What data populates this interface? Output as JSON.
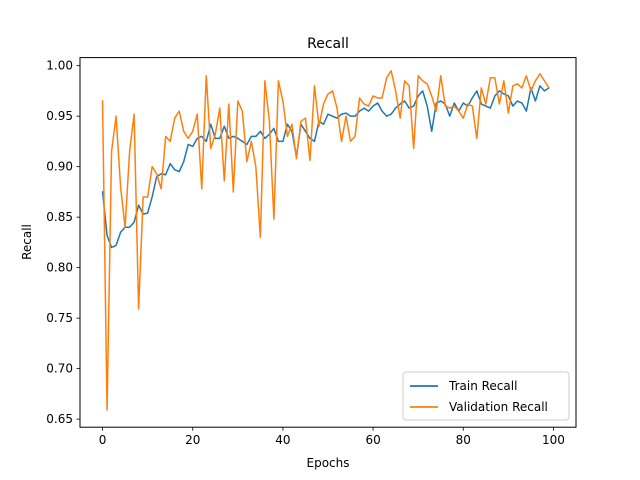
{
  "chart_data": {
    "type": "line",
    "title": "Recall",
    "xlabel": "Epochs",
    "ylabel": "Recall",
    "xlim": [
      -5,
      105
    ],
    "ylim": [
      0.642,
      1.008
    ],
    "xticks": [
      0,
      20,
      40,
      60,
      80,
      100
    ],
    "xtick_labels": [
      "0",
      "20",
      "40",
      "60",
      "80",
      "100"
    ],
    "yticks": [
      0.65,
      0.7,
      0.75,
      0.8,
      0.85,
      0.9,
      0.95,
      1.0
    ],
    "ytick_labels": [
      "0.65",
      "0.70",
      "0.75",
      "0.80",
      "0.85",
      "0.90",
      "0.95",
      "1.00"
    ],
    "grid": false,
    "legend_position": "lower-right",
    "series": [
      {
        "name": "Train Recall",
        "color": "#1f77b4",
        "values": [
          0.875,
          0.832,
          0.82,
          0.822,
          0.835,
          0.84,
          0.84,
          0.845,
          0.862,
          0.853,
          0.854,
          0.87,
          0.89,
          0.893,
          0.892,
          0.903,
          0.897,
          0.895,
          0.905,
          0.922,
          0.92,
          0.928,
          0.93,
          0.925,
          0.942,
          0.928,
          0.928,
          0.94,
          0.928,
          0.93,
          0.928,
          0.925,
          0.922,
          0.93,
          0.93,
          0.935,
          0.928,
          0.932,
          0.938,
          0.925,
          0.925,
          0.942,
          0.935,
          0.91,
          0.942,
          0.935,
          0.928,
          0.925,
          0.945,
          0.942,
          0.952,
          0.95,
          0.948,
          0.952,
          0.953,
          0.95,
          0.95,
          0.955,
          0.958,
          0.955,
          0.96,
          0.963,
          0.955,
          0.95,
          0.952,
          0.958,
          0.962,
          0.965,
          0.958,
          0.96,
          0.97,
          0.975,
          0.96,
          0.935,
          0.963,
          0.965,
          0.962,
          0.95,
          0.963,
          0.955,
          0.963,
          0.96,
          0.968,
          0.975,
          0.962,
          0.96,
          0.958,
          0.97,
          0.975,
          0.972,
          0.97,
          0.96,
          0.965,
          0.963,
          0.955,
          0.978,
          0.965,
          0.98,
          0.975,
          0.978
        ]
      },
      {
        "name": "Validation Recall",
        "color": "#ff7f0e",
        "values": [
          0.965,
          0.659,
          0.915,
          0.95,
          0.88,
          0.84,
          0.915,
          0.952,
          0.759,
          0.87,
          0.87,
          0.9,
          0.893,
          0.878,
          0.93,
          0.925,
          0.948,
          0.955,
          0.935,
          0.928,
          0.935,
          0.952,
          0.878,
          0.99,
          0.918,
          0.932,
          0.958,
          0.886,
          0.962,
          0.875,
          0.965,
          0.955,
          0.905,
          0.925,
          0.9,
          0.83,
          0.985,
          0.945,
          0.848,
          0.985,
          0.965,
          0.93,
          0.942,
          0.908,
          0.945,
          0.948,
          0.906,
          0.98,
          0.94,
          0.962,
          0.972,
          0.975,
          0.958,
          0.925,
          0.95,
          0.925,
          0.93,
          0.968,
          0.962,
          0.96,
          0.97,
          0.968,
          0.968,
          0.988,
          0.995,
          0.975,
          0.948,
          0.985,
          0.98,
          0.918,
          0.99,
          0.985,
          0.982,
          0.97,
          0.955,
          0.99,
          0.96,
          0.958,
          0.96,
          0.955,
          0.948,
          0.962,
          0.96,
          0.928,
          0.978,
          0.962,
          0.988,
          0.988,
          0.962,
          0.985,
          0.953,
          0.98,
          0.982,
          0.978,
          0.99,
          0.975,
          0.985,
          0.992,
          0.985,
          0.978
        ]
      }
    ]
  }
}
